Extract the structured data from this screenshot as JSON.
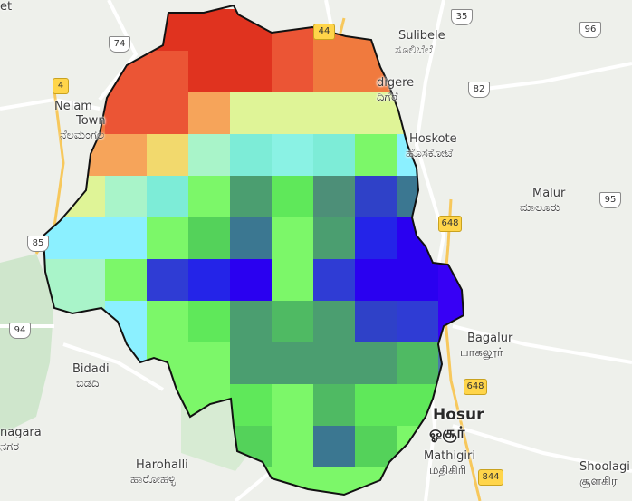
{
  "map": {
    "place_labels": [
      {
        "id": "sulibele-en",
        "text": "Sulibele"
      },
      {
        "id": "sulibele-kn",
        "text": "ಸೂಲಿಬೆಲೆ"
      },
      {
        "id": "devanahalli-en",
        "text": "digere"
      },
      {
        "id": "devanahalli-kn",
        "text": "ದಿಗೆರೆ"
      },
      {
        "id": "nelamangala-en-1",
        "text": "Nelam"
      },
      {
        "id": "nelamangala-en-2",
        "text": "Town"
      },
      {
        "id": "nelamangala-kn",
        "text": "ನೆಲಮಂಗಲ"
      },
      {
        "id": "hoskote-en",
        "text": "Hoskote"
      },
      {
        "id": "hoskote-kn",
        "text": "ಹೊಸಕೋಟೆ"
      },
      {
        "id": "malur-en",
        "text": "Malur"
      },
      {
        "id": "malur-kn",
        "text": "ಮಾಲೂರು"
      },
      {
        "id": "bagalur-en",
        "text": "Bagalur"
      },
      {
        "id": "bagalur-kn",
        "text": "பாகலூர்"
      },
      {
        "id": "bidadi-en",
        "text": "Bidadi"
      },
      {
        "id": "bidadi-kn",
        "text": "ಬಿಡದಿ"
      },
      {
        "id": "hosur-en",
        "text": "Hosur"
      },
      {
        "id": "hosur-ta",
        "text": "ஓசூர்"
      },
      {
        "id": "mathigiri-en",
        "text": "Mathigiri"
      },
      {
        "id": "mathigiri-ta",
        "text": "மதிகிரி"
      },
      {
        "id": "harohalli-en",
        "text": "Harohalli"
      },
      {
        "id": "harohalli-kn",
        "text": "ಹಾರೋಹಳ್ಳಿ"
      },
      {
        "id": "shoolagiri-en",
        "text": "Shoolagi"
      },
      {
        "id": "shoolagiri-ta",
        "text": "சூளகிர"
      },
      {
        "id": "ramanagara-en",
        "text": "nagara"
      },
      {
        "id": "ramanagara-kn",
        "text": "ನಗರ"
      },
      {
        "id": "edge-top-left",
        "text": "et"
      }
    ],
    "route_shields": [
      {
        "id": "nh35",
        "text": "35",
        "kind": "national"
      },
      {
        "id": "nh96",
        "text": "96",
        "kind": "national"
      },
      {
        "id": "nh74",
        "text": "74",
        "kind": "national"
      },
      {
        "id": "nh44",
        "text": "44",
        "kind": "state"
      },
      {
        "id": "nh82",
        "text": "82",
        "kind": "national"
      },
      {
        "id": "sh4",
        "text": "4",
        "kind": "state"
      },
      {
        "id": "nh648a",
        "text": "648",
        "kind": "state"
      },
      {
        "id": "nh95",
        "text": "95",
        "kind": "national"
      },
      {
        "id": "nh85",
        "text": "85",
        "kind": "national"
      },
      {
        "id": "nh94",
        "text": "94",
        "kind": "national"
      },
      {
        "id": "nh648b",
        "text": "648",
        "kind": "state"
      },
      {
        "id": "nh844",
        "text": "844",
        "kind": "state"
      }
    ],
    "heatmap": {
      "colors": {
        "c0": "#e0331f",
        "c1": "#eb5535",
        "c2": "#f07a3e",
        "c3": "#f6a45a",
        "c4": "#f2d96d",
        "c5": "#fbeb6a",
        "c6": "#dff497",
        "c7": "#c6f4a6",
        "c8": "#a9f4c9",
        "c9": "#7decd7",
        "c10": "#8af2e4",
        "c11": "#8bf0ff",
        "c12": "#7cf769",
        "c13": "#5fe85a",
        "c14": "#54d25a",
        "c15": "#4fba63",
        "c16": "#4b9e70",
        "c17": "#4d8f78",
        "c18": "#3b7791",
        "c19": "#2f41c8",
        "c20": "#2f3cd4",
        "c21": "#2424e8",
        "c22": "#2a00f0",
        "c23": "#3700f5",
        "c24": "#58a6a8",
        "c25": "#4d7aa9"
      }
    }
  }
}
